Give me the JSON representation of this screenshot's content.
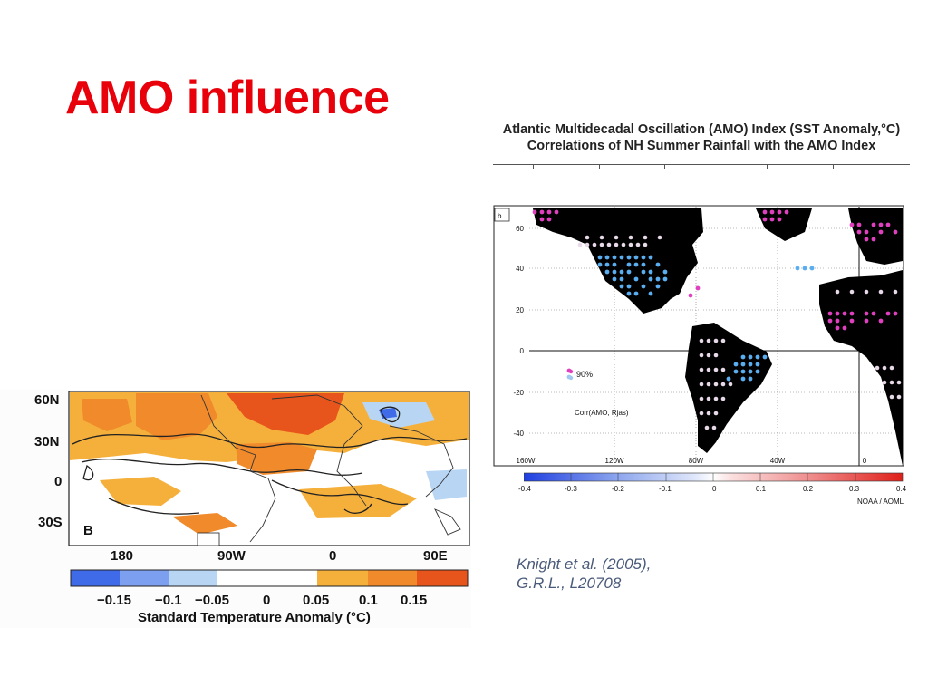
{
  "slide": {
    "title": "AMO influence"
  },
  "right_figure": {
    "title_line1": "Atlantic Multidecadal Oscillation (AMO) Index (SST Anomaly,°C)",
    "title_line2": "Correlations of NH Summer Rainfall with the AMO Index",
    "panel_label": "b",
    "lat_labels": [
      "60",
      "40",
      "20",
      "0",
      "-20",
      "-40"
    ],
    "lon_labels": [
      "160W",
      "120W",
      "80W",
      "40W",
      "0"
    ],
    "legend_significance": "90%",
    "legend_label": "Corr(AMO, Rjas)",
    "colorbar_ticks": [
      "-0.4",
      "-0.3",
      "-0.2",
      "-0.1",
      "0",
      "0.1",
      "0.2",
      "0.3",
      "0.4"
    ],
    "credit": "NOAA / AOML",
    "colors": {
      "negative": "#1f3fe0",
      "positive": "#e0201a",
      "significant": "#e040c0",
      "land": "#000000"
    }
  },
  "left_figure": {
    "panel_label": "B",
    "lat_labels": [
      "60N",
      "30N",
      "0",
      "30S"
    ],
    "lon_labels": [
      "180",
      "90W",
      "0",
      "90E"
    ],
    "colorbar_ticks": [
      "−0.15",
      "−0.1",
      "−0.05",
      "0",
      "0.05",
      "0.1",
      "0.15"
    ],
    "colorbar_title": "Standard Temperature Anomaly (°C)",
    "colorbar_colors": [
      "#3f6be8",
      "#7d9fef",
      "#b8d6f4",
      "#ffffff",
      "#ffffff",
      "#f5b03c",
      "#f08a2a",
      "#e8551c"
    ]
  },
  "citation": {
    "line1": "Knight et al. (2005),",
    "line2": "G.R.L., L20708"
  }
}
